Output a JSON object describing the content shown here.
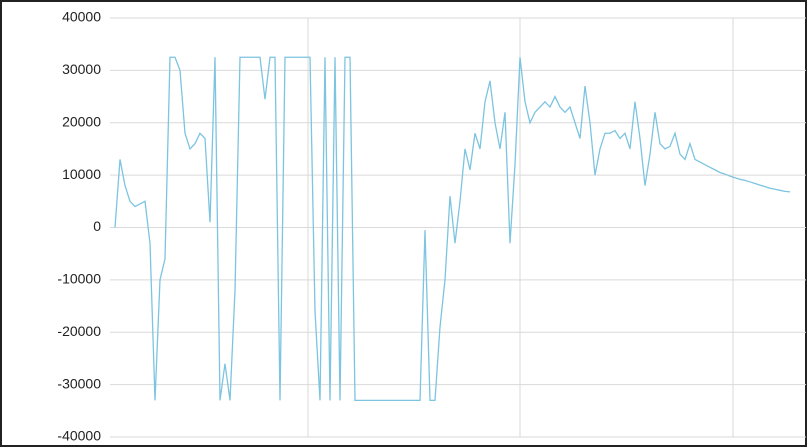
{
  "chart_data": {
    "type": "line",
    "series": [
      {
        "color": "#7cc4e0",
        "values": [
          0,
          13000,
          8000,
          5000,
          4000,
          4500,
          5000,
          -3000,
          -33000,
          -10000,
          -6000,
          32500,
          32500,
          30000,
          18000,
          15000,
          16000,
          18000,
          17000,
          1000,
          32500,
          -33000,
          -26000,
          -33000,
          -12000,
          32500,
          32500,
          32500,
          32500,
          32500,
          24500,
          32500,
          32500,
          -33000,
          32500,
          32500,
          32500,
          32500,
          32500,
          32500,
          -16000,
          -33000,
          32500,
          -33000,
          32500,
          -33000,
          32500,
          32500,
          -33000,
          -33000,
          -33000,
          -33000,
          -33000,
          -33000,
          -33000,
          -33000,
          -33000,
          -33000,
          -33000,
          -33000,
          -33000,
          -33000,
          -500,
          -33000,
          -33000,
          -19000,
          -10000,
          6000,
          -3000,
          5000,
          15000,
          11000,
          18000,
          15000,
          24000,
          28000,
          20000,
          15000,
          22000,
          -3000,
          12000,
          32500,
          24000,
          20000,
          22000,
          23000,
          24000,
          23000,
          25000,
          23000,
          22000,
          23000,
          20000,
          17000,
          27000,
          20000,
          10000,
          15000,
          18000,
          18000,
          18500,
          17000,
          18000,
          15000,
          24000,
          17000,
          8000,
          14000,
          22000,
          16000,
          15000,
          15500,
          18000,
          14000,
          13000,
          16000,
          13000,
          12500,
          12000,
          11500,
          11000,
          10500,
          10200,
          9800,
          9500,
          9200,
          9000,
          8700,
          8400,
          8100,
          7800,
          7500,
          7300,
          7100,
          6900,
          6800
        ]
      }
    ],
    "ylim": [
      -40000,
      40000
    ],
    "yticks": [
      -40000,
      -30000,
      -20000,
      -10000,
      0,
      10000,
      20000,
      30000,
      40000
    ],
    "grid": true
  }
}
